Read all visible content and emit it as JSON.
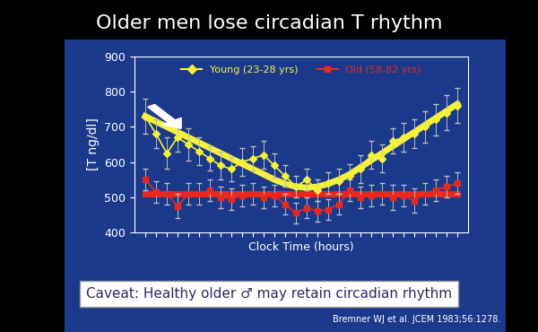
{
  "chart_data": {
    "type": "line",
    "title": "Older men lose circadian T rhythm",
    "y_label": "[T ng/dl]",
    "x_label": "Clock Time (hours)",
    "x": [
      0,
      1,
      2,
      3,
      4,
      5,
      6,
      7,
      8,
      9,
      10,
      11,
      12,
      13,
      14,
      15,
      16,
      17,
      18,
      19,
      20,
      21,
      22,
      23,
      24,
      25,
      26,
      27,
      28,
      29
    ],
    "xlim": [
      -1,
      30
    ],
    "ylim": [
      400,
      900
    ],
    "yticks": [
      400,
      500,
      600,
      700,
      800,
      900
    ],
    "tick_labels": "y",
    "legend": "upper center",
    "series": [
      {
        "name": "Young (23-28 yrs)",
        "color": "#f5f03c",
        "marker": "diamond",
        "line_style": "solid",
        "values": [
          730,
          680,
          625,
          670,
          650,
          630,
          610,
          590,
          580,
          600,
          610,
          620,
          590,
          560,
          530,
          550,
          520,
          540,
          545,
          560,
          580,
          620,
          610,
          660,
          670,
          680,
          700,
          720,
          740,
          760
        ],
        "errors": [
          50,
          40,
          45,
          40,
          45,
          40,
          35,
          40,
          35,
          40,
          35,
          40,
          35,
          30,
          30,
          30,
          30,
          30,
          35,
          35,
          40,
          40,
          40,
          35,
          40,
          40,
          45,
          45,
          50,
          50
        ]
      },
      {
        "name": "Old (58-82 yrs)",
        "color": "#e8281e",
        "marker": "square",
        "line_style": "solid",
        "values": [
          550,
          515,
          510,
          475,
          510,
          510,
          520,
          500,
          495,
          505,
          510,
          500,
          505,
          480,
          455,
          470,
          460,
          465,
          480,
          520,
          500,
          505,
          510,
          500,
          505,
          490,
          510,
          520,
          530,
          540
        ],
        "errors": [
          30,
          30,
          30,
          35,
          30,
          30,
          30,
          30,
          30,
          30,
          30,
          30,
          30,
          30,
          30,
          30,
          30,
          30,
          30,
          30,
          30,
          30,
          30,
          35,
          30,
          35,
          30,
          30,
          30,
          30
        ]
      },
      {
        "color": "#f5f03c",
        "line_style": "solid",
        "type": "trend",
        "values": [
          730,
          715,
          700,
          685,
          670,
          655,
          640,
          625,
          610,
          595,
          580,
          565,
          550,
          538,
          530,
          527,
          530,
          538,
          550,
          565,
          585,
          605,
          625,
          645,
          665,
          685,
          705,
          725,
          745,
          765
        ]
      },
      {
        "color": "#e8281e",
        "line_style": "solid",
        "type": "trend",
        "values": [
          510,
          510,
          510,
          510,
          510,
          510,
          510,
          510,
          510,
          510,
          510,
          510,
          510,
          510,
          510,
          510,
          510,
          510,
          510,
          510,
          510,
          510,
          510,
          510,
          510,
          510,
          510,
          510,
          510,
          510
        ]
      }
    ],
    "annotations": [
      "Caveat: Healthy older ♂ may retain circadian rhythm",
      "Bremner WJ et al. JCEM 1983;56:1278."
    ]
  }
}
